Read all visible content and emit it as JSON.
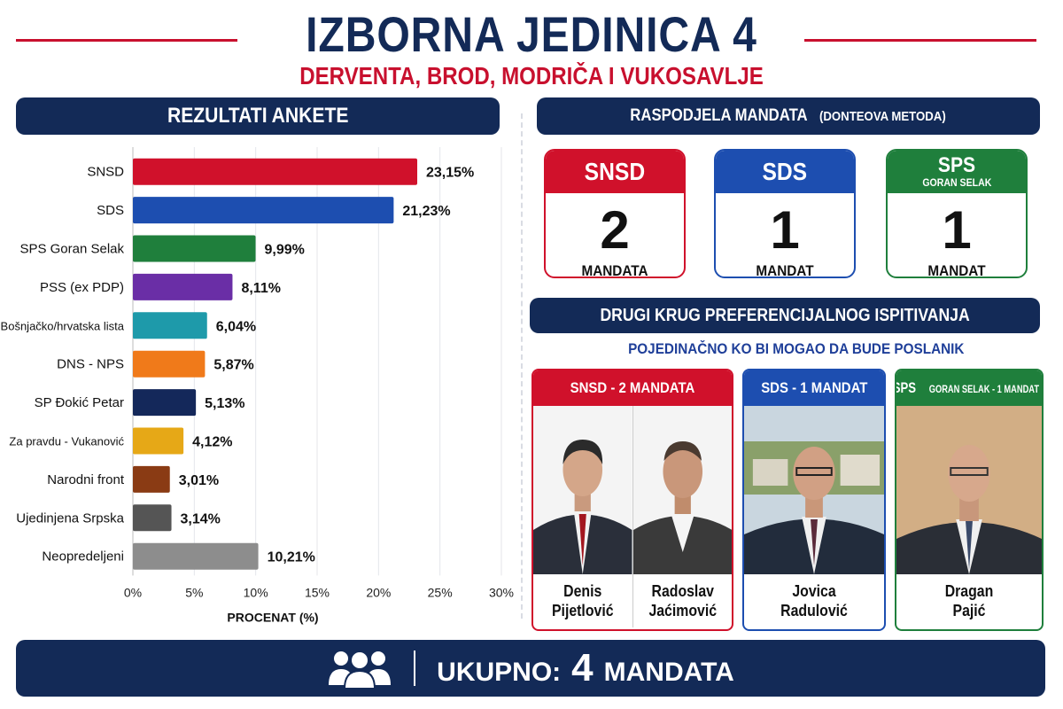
{
  "header": {
    "title": "IZBORNA JEDINICA 4",
    "subtitle": "DERVENTA, BROD, MODRIČA I VUKOSAVLJE"
  },
  "survey": {
    "banner": "REZULTATI ANKETE"
  },
  "chart_data": {
    "type": "bar",
    "orientation": "horizontal",
    "xlabel": "PROCENAT (%)",
    "xlim": [
      0,
      30
    ],
    "xticks": [
      "0%",
      "5%",
      "10%",
      "15%",
      "20%",
      "25%",
      "30%"
    ],
    "grid": true,
    "categories": [
      "SNSD",
      "SDS",
      "SPS Goran Selak",
      "PSS (ex PDP)",
      "Bošnjačko/hrvatska lista",
      "DNS - NPS",
      "SP Đokić Petar",
      "Za pravdu - Vukanović",
      "Narodni front",
      "Ujedinjena Srpska",
      "Neopredeljeni"
    ],
    "values": [
      23.15,
      21.23,
      9.99,
      8.11,
      6.04,
      5.87,
      5.13,
      4.12,
      3.01,
      3.14,
      10.21
    ],
    "value_labels": [
      "23,15%",
      "21,23%",
      "9,99%",
      "8,11%",
      "6,04%",
      "5,87%",
      "5,13%",
      "4,12%",
      "3,01%",
      "3,14%",
      "10,21%"
    ],
    "colors": [
      "#d0112b",
      "#1d4eb0",
      "#1f7f3c",
      "#6a2ea6",
      "#1e9aaa",
      "#f07a1a",
      "#14285a",
      "#e6a817",
      "#8a3b14",
      "#555555",
      "#8d8d8d"
    ]
  },
  "mandates": {
    "banner_title": "RASPODJELA MANDATA",
    "banner_method": "(DONTEOVA METODA)",
    "cards": [
      {
        "party": "SNSD",
        "sub": "",
        "count": "2",
        "label": "MANDATA",
        "color": "#d0112b"
      },
      {
        "party": "SDS",
        "sub": "",
        "count": "1",
        "label": "MANDAT",
        "color": "#1d4eb0"
      },
      {
        "party": "SPS",
        "sub": "GORAN SELAK",
        "count": "1",
        "label": "MANDAT",
        "color": "#1f7f3c"
      }
    ]
  },
  "runoff": {
    "banner": "DRUGI KRUG PREFERENCIJALNOG ISPITIVANJA",
    "caption": "POJEDINAČNO KO BI MOGAO DA BUDE POSLANIK",
    "groups": [
      {
        "header": "SNSD - 2 MANDATA",
        "color": "#d0112b",
        "candidates": [
          {
            "first": "Denis",
            "last": "Pijetlović"
          },
          {
            "first": "Radoslav",
            "last": "Jaćimović"
          }
        ]
      },
      {
        "header": "SDS - 1 MANDAT",
        "color": "#1d4eb0",
        "candidates": [
          {
            "first": "Jovica",
            "last": "Radulović"
          }
        ]
      },
      {
        "header_main": "SPS",
        "header_sub": "GORAN SELAK - 1 MANDAT",
        "color": "#1f7f3c",
        "candidates": [
          {
            "first": "Dragan",
            "last": "Pajić"
          }
        ]
      }
    ]
  },
  "footer": {
    "icon": "group-people-icon",
    "label": "UKUPNO:",
    "number": "4",
    "unit": "MANDATA"
  }
}
